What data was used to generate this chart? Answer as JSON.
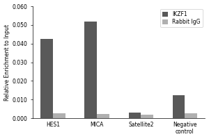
{
  "categories": [
    "HES1",
    "MICA",
    "Satellite2",
    "Negative\ncontrol"
  ],
  "ikzf1_values": [
    0.0425,
    0.052,
    0.003,
    0.0125
  ],
  "rabbit_igg_values": [
    0.0025,
    0.0022,
    0.002,
    0.0025
  ],
  "ikzf1_color": "#595959",
  "rabbit_igg_color": "#b0b0b0",
  "ylabel": "Relative Enrichment to Input",
  "ylim": [
    0,
    0.06
  ],
  "yticks": [
    0.0,
    0.01,
    0.02,
    0.03,
    0.04,
    0.05,
    0.06
  ],
  "legend_labels": [
    "IKZF1",
    "Rabbit IgG"
  ],
  "bar_width": 0.28,
  "background_color": "#ffffff",
  "tick_fontsize": 5.5,
  "legend_fontsize": 5.5,
  "ylabel_fontsize": 5.5
}
